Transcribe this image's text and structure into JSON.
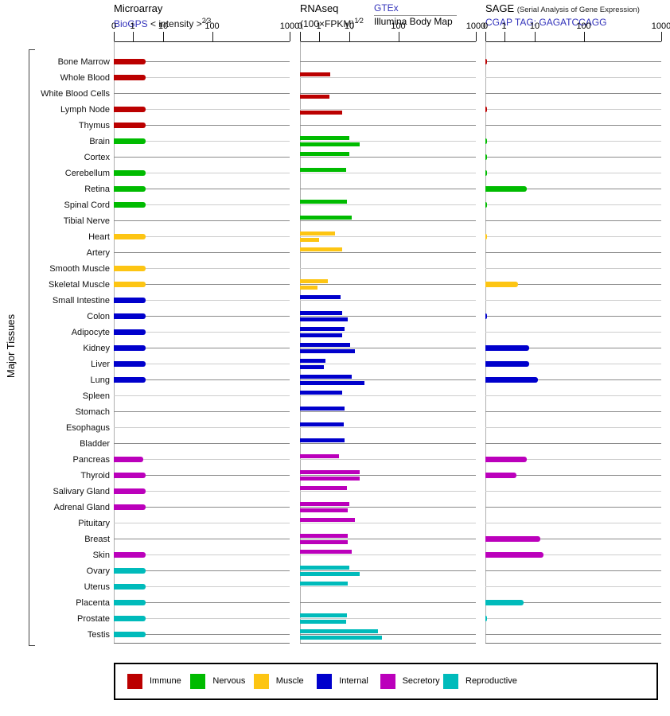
{
  "header": {
    "microarray": {
      "title": "Microarray",
      "link": "BioGPS",
      "intensity_label": "< intensity >",
      "intensity_sup": "2⁄3"
    },
    "rnaseq": {
      "title": "RNAseq",
      "formula": "(100×FPKM)",
      "formula_sup": "1⁄2",
      "link": "GTEx",
      "sublink": "Illumina Body Map"
    },
    "sage": {
      "title": "SAGE",
      "note": "(Serial Analysis of Gene Expression)",
      "link": "CGAP TAG: GAGATCCAGG"
    }
  },
  "y_axis_label": "Major Tissues",
  "axis": {
    "ticks": [
      "0",
      "1",
      "10",
      "100",
      "1000"
    ]
  },
  "legend": [
    {
      "label": "Immune",
      "color": "#bb0000"
    },
    {
      "label": "Nervous",
      "color": "#00bb00"
    },
    {
      "label": "Muscle",
      "color": "#fdc513"
    },
    {
      "label": "Internal",
      "color": "#0000cc"
    },
    {
      "label": "Secretory",
      "color": "#bb00bb"
    },
    {
      "label": "Reproductive",
      "color": "#00bbbb"
    }
  ],
  "chart_data": {
    "type": "bar",
    "orientation": "horizontal",
    "scale": "nonlinear expression scale, ticks at 0 / 1 / 10 / 100 / 1000, same axis repeated for all three panels",
    "panels": [
      "Microarray (BioGPS)",
      "RNAseq (GTEx top bar, Illumina Body Map bottom bar)",
      "SAGE (CGAP)"
    ],
    "legend_position": "bottom",
    "grid": "horizontal row lines only",
    "categories": [
      "Bone Marrow",
      "Whole Blood",
      "White Blood Cells",
      "Lymph Node",
      "Thymus",
      "Brain",
      "Cortex",
      "Cerebellum",
      "Retina",
      "Spinal Cord",
      "Tibial Nerve",
      "Heart",
      "Artery",
      "Smooth Muscle",
      "Skeletal Muscle",
      "Small Intestine",
      "Colon",
      "Adipocyte",
      "Kidney",
      "Liver",
      "Lung",
      "Spleen",
      "Stomach",
      "Esophagus",
      "Bladder",
      "Pancreas",
      "Thyroid",
      "Salivary Gland",
      "Adrenal Gland",
      "Pituitary",
      "Breast",
      "Skin",
      "Ovary",
      "Uterus",
      "Placenta",
      "Prostate",
      "Testis"
    ],
    "groups": [
      "Immune",
      "Immune",
      "Immune",
      "Immune",
      "Immune",
      "Nervous",
      "Nervous",
      "Nervous",
      "Nervous",
      "Nervous",
      "Nervous",
      "Muscle",
      "Muscle",
      "Muscle",
      "Muscle",
      "Internal",
      "Internal",
      "Internal",
      "Internal",
      "Internal",
      "Internal",
      "Internal",
      "Internal",
      "Internal",
      "Internal",
      "Secretory",
      "Secretory",
      "Secretory",
      "Secretory",
      "Secretory",
      "Secretory",
      "Secretory",
      "Reproductive",
      "Reproductive",
      "Reproductive",
      "Reproductive",
      "Reproductive"
    ],
    "series": [
      {
        "name": "Microarray BioGPS intensity",
        "panel": 0,
        "slot": "center",
        "values": [
          2.7,
          2.7,
          null,
          2.7,
          2.7,
          2.7,
          null,
          2.7,
          2.7,
          2.7,
          null,
          2.7,
          null,
          2.7,
          2.7,
          2.7,
          2.7,
          2.7,
          2.7,
          2.7,
          2.7,
          null,
          null,
          null,
          null,
          2.2,
          2.7,
          2.7,
          2.7,
          null,
          null,
          2.7,
          2.7,
          2.7,
          2.7,
          2.7,
          2.7
        ]
      },
      {
        "name": "RNAseq GTEx",
        "panel": 1,
        "slot": "top",
        "values": [
          null,
          2.4,
          null,
          null,
          null,
          10,
          10,
          8,
          null,
          8.3,
          11,
          3.4,
          5.8,
          null,
          2,
          5.2,
          6,
          7,
          10.5,
          1.7,
          11,
          5.8,
          6.8,
          6.4,
          6.8,
          4.7,
          16,
          8.3,
          10,
          13,
          9,
          11,
          10,
          9,
          null,
          8.2,
          39
        ]
      },
      {
        "name": "RNAseq Illumina Body Map",
        "panel": 1,
        "slot": "bottom",
        "values": [
          null,
          null,
          2.3,
          6,
          null,
          16,
          null,
          null,
          null,
          null,
          null,
          1,
          null,
          null,
          0.95,
          null,
          9,
          5.9,
          13,
          1.5,
          20,
          null,
          null,
          null,
          null,
          null,
          16,
          null,
          9,
          null,
          8.9,
          null,
          16,
          null,
          null,
          7.8,
          47
        ]
      },
      {
        "name": "SAGE CGAP tag GAGATCCAGG",
        "panel": 2,
        "slot": "center",
        "values": [
          0.1,
          null,
          null,
          0.1,
          null,
          0.1,
          0.1,
          0.1,
          5.4,
          0.1,
          null,
          0.1,
          null,
          null,
          2.9,
          null,
          0.1,
          null,
          6.5,
          6.5,
          11.5,
          null,
          null,
          null,
          null,
          5.4,
          2.6,
          null,
          null,
          null,
          13,
          15,
          null,
          null,
          4.4,
          0.1,
          null
        ]
      }
    ]
  }
}
